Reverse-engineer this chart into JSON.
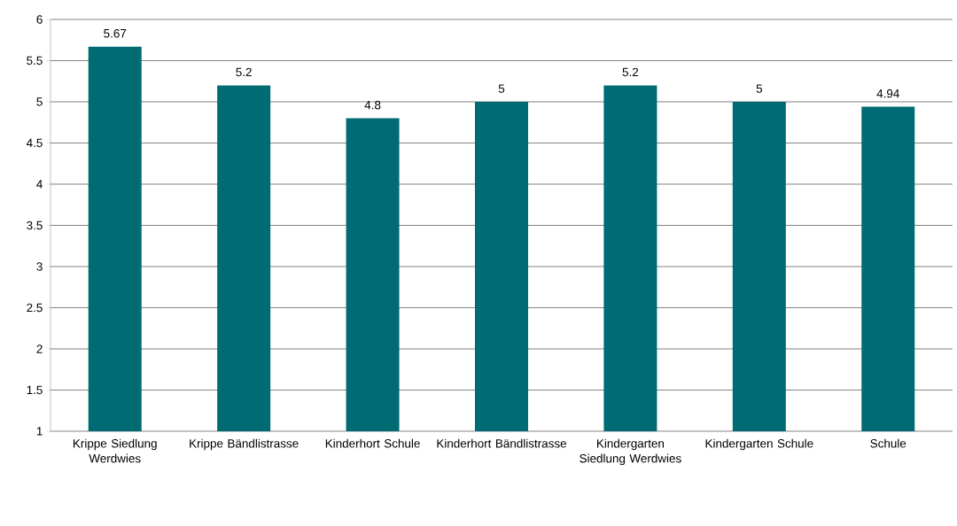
{
  "chart_data": {
    "type": "bar",
    "categories": [
      "Krippe Siedlung Werdwies",
      "Krippe Bändlistrasse",
      "Kinderhort Schule",
      "Kinderhort Bändlistrasse",
      "Kindergarten Siedlung Werdwies",
      "Kindergarten Schule",
      "Schule"
    ],
    "values": [
      5.67,
      5.2,
      4.8,
      5,
      5.2,
      5,
      4.94
    ],
    "color": "#006b73",
    "ylim": [
      1,
      6
    ],
    "yticks": [
      1,
      1.5,
      2,
      2.5,
      3,
      3.5,
      4,
      4.5,
      5,
      5.5,
      6
    ],
    "grid": "y",
    "data_labels": true
  }
}
